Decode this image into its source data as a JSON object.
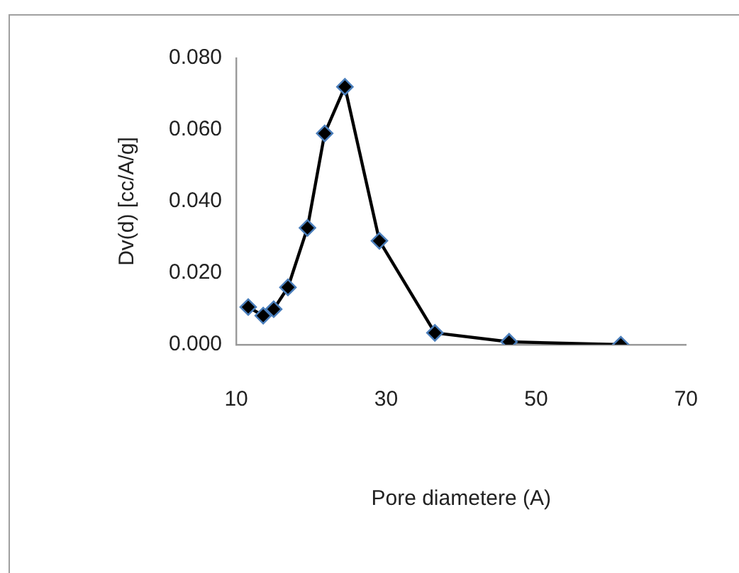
{
  "chart_data": {
    "type": "line",
    "xlabel": "Pore diametere (A)",
    "ylabel": "Dv(d) [cc/A/g]",
    "x": [
      11.6,
      13.6,
      15.0,
      16.9,
      19.5,
      21.8,
      24.5,
      29.1,
      36.5,
      46.4,
      61.3
    ],
    "series": [
      {
        "color": "#000000",
        "values": [
          0.0105,
          0.0081,
          0.0099,
          0.016,
          0.0326,
          0.059,
          0.072,
          0.029,
          0.0033,
          0.0008,
          0.0
        ]
      }
    ],
    "line_style": "solid",
    "marker": "diamond",
    "xlim": [
      10,
      70
    ],
    "xticks": [
      10,
      30,
      50,
      70
    ],
    "ylim": [
      0,
      0.08
    ],
    "yticks": [
      {
        "value": 0,
        "label": "0.000"
      },
      {
        "value": 0.02,
        "label": "0.020"
      },
      {
        "value": 0.04,
        "label": "0.040"
      },
      {
        "value": 0.06,
        "label": "0.060"
      },
      {
        "value": 0.08,
        "label": "0.080"
      }
    ],
    "grid": false,
    "legend": false
  }
}
